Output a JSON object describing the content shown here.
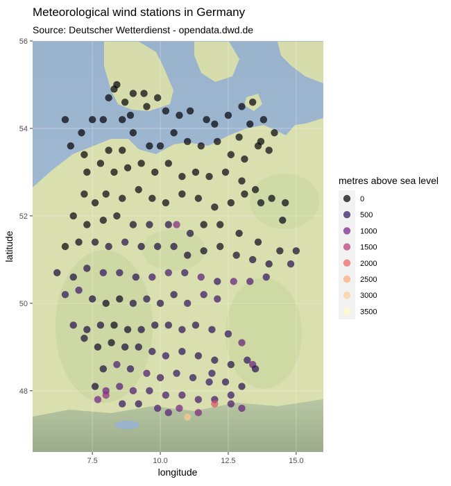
{
  "title": "Meteorological wind stations in Germany",
  "subtitle": "Source: Deutscher Wetterdienst - opendata.dwd.de",
  "chart_data": {
    "type": "scatter",
    "title": "Meteorological wind stations in Germany",
    "subtitle": "Source: Deutscher Wetterdienst - opendata.dwd.de",
    "xlabel": "longitude",
    "ylabel": "latitude",
    "xlim": [
      5.3,
      16.0
    ],
    "ylim": [
      46.6,
      56.0
    ],
    "x_ticks": [
      7.5,
      10.0,
      12.5,
      15.0
    ],
    "x_tick_labels": [
      "7.5",
      "10.0",
      "12.5",
      "15.0"
    ],
    "y_ticks": [
      48,
      50,
      52,
      54,
      56
    ],
    "y_tick_labels": [
      "48",
      "50",
      "52",
      "54",
      "56"
    ],
    "background": "terrain basemap",
    "legend": {
      "title": "metres above sea level",
      "placement": "right",
      "items": [
        {
          "label": "0",
          "color": "#000004"
        },
        {
          "label": "500",
          "color": "#2C115F"
        },
        {
          "label": "1000",
          "color": "#721F81"
        },
        {
          "label": "1500",
          "color": "#B73779"
        },
        {
          "label": "2000",
          "color": "#F1605D"
        },
        {
          "label": "2500",
          "color": "#FEA973"
        },
        {
          "label": "3000",
          "color": "#FECE91"
        },
        {
          "label": "3500",
          "color": "#FCFDBF"
        }
      ]
    },
    "point_alpha": 0.7,
    "points": [
      [
        8.4,
        55.0,
        5
      ],
      [
        8.3,
        54.9,
        10
      ],
      [
        8.1,
        54.7,
        5
      ],
      [
        8.7,
        54.6,
        10
      ],
      [
        9.0,
        54.8,
        20
      ],
      [
        9.4,
        54.8,
        30
      ],
      [
        9.9,
        54.7,
        30
      ],
      [
        10.2,
        54.4,
        40
      ],
      [
        10.7,
        54.3,
        20
      ],
      [
        11.1,
        54.4,
        10
      ],
      [
        11.7,
        54.2,
        20
      ],
      [
        12.0,
        54.1,
        5
      ],
      [
        12.5,
        54.3,
        10
      ],
      [
        13.0,
        54.5,
        20
      ],
      [
        13.4,
        54.6,
        5
      ],
      [
        13.8,
        54.2,
        10
      ],
      [
        13.3,
        54.1,
        5
      ],
      [
        14.2,
        53.9,
        10
      ],
      [
        13.7,
        53.7,
        20
      ],
      [
        12.9,
        53.8,
        30
      ],
      [
        8.9,
        54.3,
        5
      ],
      [
        9.5,
        54.5,
        20
      ],
      [
        8.6,
        54.2,
        5
      ],
      [
        7.9,
        54.2,
        10
      ],
      [
        7.5,
        54.2,
        5
      ],
      [
        7.1,
        53.9,
        5
      ],
      [
        6.5,
        54.2,
        5
      ],
      [
        6.7,
        53.6,
        5
      ],
      [
        7.2,
        53.4,
        10
      ],
      [
        8.1,
        53.5,
        5
      ],
      [
        8.6,
        53.5,
        5
      ],
      [
        9.0,
        53.9,
        5
      ],
      [
        9.6,
        53.6,
        10
      ],
      [
        10.0,
        53.6,
        20
      ],
      [
        10.5,
        53.9,
        20
      ],
      [
        11.0,
        53.7,
        40
      ],
      [
        11.5,
        53.6,
        50
      ],
      [
        12.1,
        53.7,
        40
      ],
      [
        12.6,
        53.4,
        60
      ],
      [
        13.1,
        53.3,
        60
      ],
      [
        13.6,
        53.6,
        30
      ],
      [
        14.0,
        53.5,
        50
      ],
      [
        7.3,
        53.0,
        10
      ],
      [
        7.8,
        53.2,
        10
      ],
      [
        8.3,
        53.0,
        20
      ],
      [
        8.8,
        53.1,
        10
      ],
      [
        9.3,
        53.2,
        20
      ],
      [
        9.8,
        53.0,
        40
      ],
      [
        10.3,
        53.2,
        50
      ],
      [
        10.8,
        52.9,
        60
      ],
      [
        11.3,
        53.0,
        50
      ],
      [
        11.8,
        52.9,
        40
      ],
      [
        12.4,
        53.0,
        50
      ],
      [
        13.0,
        52.8,
        50
      ],
      [
        13.5,
        52.6,
        60
      ],
      [
        14.1,
        52.4,
        60
      ],
      [
        14.6,
        52.3,
        60
      ],
      [
        7.2,
        52.5,
        30
      ],
      [
        7.6,
        52.3,
        50
      ],
      [
        8.0,
        52.5,
        40
      ],
      [
        8.6,
        52.4,
        60
      ],
      [
        9.2,
        52.6,
        40
      ],
      [
        9.7,
        52.4,
        60
      ],
      [
        10.2,
        52.3,
        80
      ],
      [
        10.8,
        52.5,
        70
      ],
      [
        11.4,
        52.4,
        70
      ],
      [
        12.0,
        52.2,
        60
      ],
      [
        12.6,
        52.3,
        40
      ],
      [
        13.1,
        52.5,
        40
      ],
      [
        13.7,
        52.3,
        50
      ],
      [
        14.5,
        51.9,
        70
      ],
      [
        6.8,
        52.0,
        40
      ],
      [
        7.3,
        51.8,
        60
      ],
      [
        7.9,
        51.9,
        60
      ],
      [
        8.4,
        52.0,
        100
      ],
      [
        9.0,
        51.8,
        200
      ],
      [
        9.6,
        51.8,
        300
      ],
      [
        10.3,
        51.8,
        400
      ],
      [
        10.6,
        51.8,
        1100
      ],
      [
        11.1,
        51.6,
        300
      ],
      [
        11.6,
        51.8,
        100
      ],
      [
        12.2,
        51.8,
        100
      ],
      [
        12.9,
        51.6,
        100
      ],
      [
        13.6,
        51.4,
        100
      ],
      [
        14.4,
        51.2,
        150
      ],
      [
        15.0,
        51.2,
        200
      ],
      [
        6.5,
        51.3,
        40
      ],
      [
        7.0,
        51.4,
        100
      ],
      [
        7.6,
        51.4,
        200
      ],
      [
        8.1,
        51.3,
        300
      ],
      [
        8.7,
        51.4,
        400
      ],
      [
        9.3,
        51.3,
        250
      ],
      [
        9.9,
        51.3,
        300
      ],
      [
        10.5,
        51.3,
        300
      ],
      [
        11.0,
        51.1,
        200
      ],
      [
        11.6,
        51.2,
        150
      ],
      [
        12.2,
        51.3,
        120
      ],
      [
        12.8,
        51.1,
        200
      ],
      [
        13.4,
        51.0,
        300
      ],
      [
        14.0,
        50.9,
        300
      ],
      [
        14.8,
        50.9,
        400
      ],
      [
        6.2,
        50.7,
        250
      ],
      [
        6.8,
        50.6,
        300
      ],
      [
        7.3,
        50.8,
        400
      ],
      [
        7.9,
        50.7,
        500
      ],
      [
        8.5,
        50.7,
        500
      ],
      [
        9.1,
        50.6,
        400
      ],
      [
        9.7,
        50.6,
        600
      ],
      [
        10.3,
        50.7,
        700
      ],
      [
        10.9,
        50.7,
        500
      ],
      [
        11.5,
        50.6,
        800
      ],
      [
        12.1,
        50.5,
        500
      ],
      [
        12.7,
        50.5,
        900
      ],
      [
        13.3,
        50.5,
        700
      ],
      [
        13.9,
        50.6,
        500
      ],
      [
        6.5,
        50.2,
        500
      ],
      [
        7.0,
        50.3,
        600
      ],
      [
        7.5,
        50.1,
        300
      ],
      [
        8.0,
        50.0,
        100
      ],
      [
        8.5,
        50.1,
        100
      ],
      [
        9.0,
        50.0,
        300
      ],
      [
        9.5,
        50.1,
        400
      ],
      [
        10.0,
        50.0,
        350
      ],
      [
        10.5,
        50.2,
        400
      ],
      [
        11.0,
        50.0,
        500
      ],
      [
        11.6,
        50.2,
        550
      ],
      [
        12.1,
        50.1,
        600
      ],
      [
        6.8,
        49.5,
        400
      ],
      [
        7.3,
        49.4,
        300
      ],
      [
        7.8,
        49.5,
        300
      ],
      [
        8.3,
        49.5,
        100
      ],
      [
        8.8,
        49.4,
        200
      ],
      [
        9.3,
        49.4,
        300
      ],
      [
        9.8,
        49.5,
        350
      ],
      [
        10.3,
        49.5,
        400
      ],
      [
        10.8,
        49.4,
        450
      ],
      [
        11.3,
        49.5,
        400
      ],
      [
        11.9,
        49.4,
        450
      ],
      [
        12.5,
        49.3,
        500
      ],
      [
        13.0,
        49.1,
        900
      ],
      [
        7.2,
        49.2,
        300
      ],
      [
        7.7,
        49.0,
        200
      ],
      [
        8.2,
        49.1,
        130
      ],
      [
        8.7,
        49.0,
        250
      ],
      [
        9.2,
        49.0,
        300
      ],
      [
        9.7,
        48.9,
        450
      ],
      [
        10.2,
        48.8,
        500
      ],
      [
        10.8,
        48.9,
        450
      ],
      [
        11.4,
        48.8,
        400
      ],
      [
        12.0,
        48.7,
        400
      ],
      [
        12.6,
        48.6,
        350
      ],
      [
        13.2,
        48.7,
        500
      ],
      [
        13.4,
        48.6,
        900
      ],
      [
        7.9,
        48.5,
        300
      ],
      [
        8.4,
        48.6,
        700
      ],
      [
        8.9,
        48.5,
        500
      ],
      [
        9.5,
        48.4,
        700
      ],
      [
        10.0,
        48.3,
        550
      ],
      [
        10.6,
        48.4,
        500
      ],
      [
        11.2,
        48.3,
        500
      ],
      [
        11.8,
        48.2,
        500
      ],
      [
        12.4,
        48.2,
        450
      ],
      [
        13.0,
        48.1,
        400
      ],
      [
        7.6,
        48.1,
        250
      ],
      [
        8.0,
        48.0,
        900
      ],
      [
        8.5,
        48.1,
        800
      ],
      [
        9.0,
        48.0,
        700
      ],
      [
        9.6,
        48.0,
        600
      ],
      [
        10.2,
        47.9,
        650
      ],
      [
        10.8,
        47.9,
        650
      ],
      [
        11.4,
        47.8,
        650
      ],
      [
        12.0,
        47.8,
        600
      ],
      [
        12.6,
        47.9,
        550
      ],
      [
        7.7,
        47.8,
        1000
      ],
      [
        8.0,
        47.9,
        1200
      ],
      [
        8.6,
        47.7,
        500
      ],
      [
        9.2,
        47.7,
        450
      ],
      [
        9.9,
        47.6,
        700
      ],
      [
        10.3,
        47.5,
        800
      ],
      [
        10.7,
        47.6,
        1000
      ],
      [
        11.0,
        47.4,
        2960
      ],
      [
        11.4,
        47.5,
        1100
      ],
      [
        12.0,
        47.7,
        1800
      ],
      [
        12.6,
        47.7,
        700
      ],
      [
        13.0,
        47.6,
        900
      ],
      [
        13.5,
        48.5,
        400
      ],
      [
        11.9,
        48.4,
        500
      ]
    ]
  }
}
